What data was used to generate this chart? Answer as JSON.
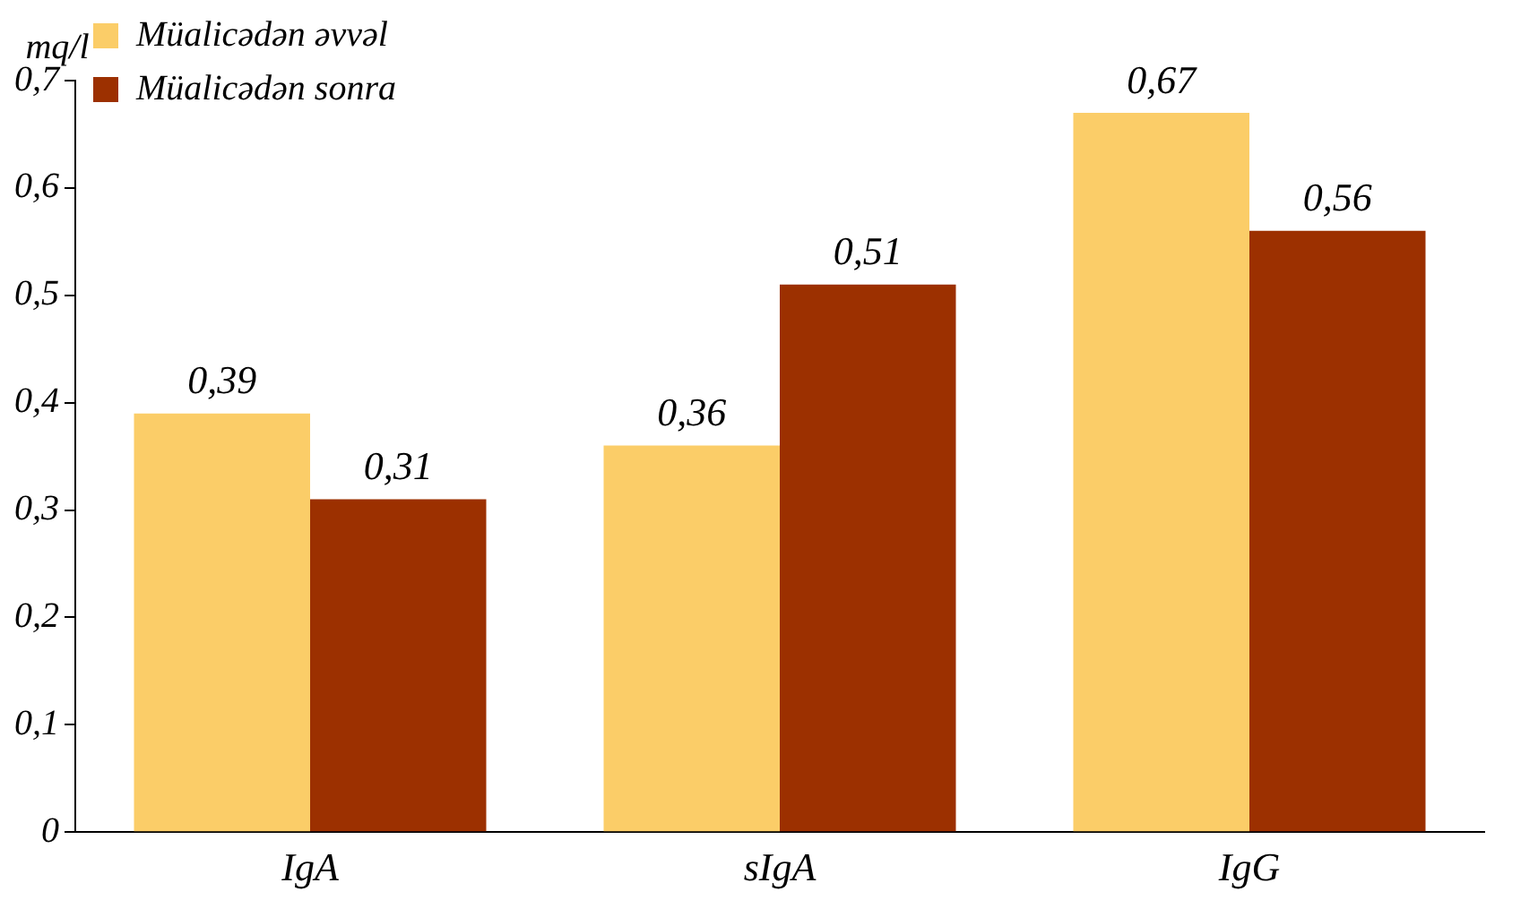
{
  "chart_data": {
    "type": "bar",
    "ylabel": "mq/l",
    "categories": [
      "IgA",
      "sIgA",
      "IgG"
    ],
    "series": [
      {
        "name": "Müalicədən əvvəl",
        "color": "#fbcd68",
        "values": [
          0.39,
          0.36,
          0.67
        ],
        "value_labels": [
          "0,39",
          "0,36",
          "0,67"
        ]
      },
      {
        "name": "Müalicədən sonra",
        "color": "#9c3000",
        "values": [
          0.31,
          0.51,
          0.56
        ],
        "value_labels": [
          "0,31",
          "0,51",
          "0,56"
        ]
      }
    ],
    "ylim": [
      0,
      0.7
    ],
    "yticks": [
      {
        "value": 0,
        "label": "0"
      },
      {
        "value": 0.1,
        "label": "0,1"
      },
      {
        "value": 0.2,
        "label": "0,2"
      },
      {
        "value": 0.3,
        "label": "0,3"
      },
      {
        "value": 0.4,
        "label": "0,4"
      },
      {
        "value": 0.5,
        "label": "0,5"
      },
      {
        "value": 0.6,
        "label": "0,6"
      },
      {
        "value": 0.7,
        "label": "0,7"
      }
    ],
    "grid": false,
    "legend": "top left"
  }
}
